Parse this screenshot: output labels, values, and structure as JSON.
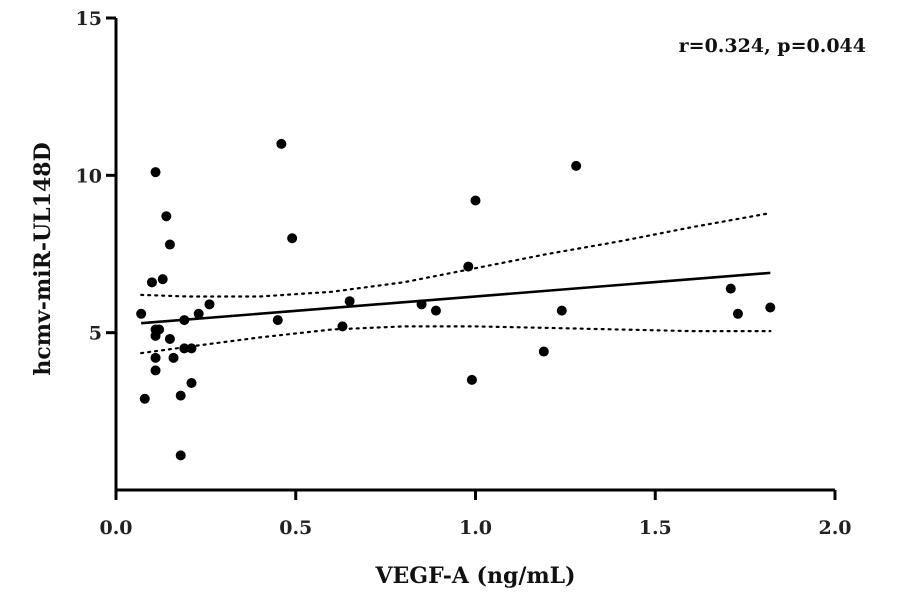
{
  "chart_data": {
    "type": "scatter",
    "title": "",
    "xlabel": "VEGF-A  (ng/mL)",
    "ylabel": "hcmv-miR-UL148D",
    "xlim": [
      0.0,
      2.0
    ],
    "ylim": [
      0,
      15
    ],
    "x_ticks": [
      0.0,
      0.5,
      1.0,
      1.5,
      2.0
    ],
    "x_tick_labels": [
      "0.0",
      "0.5",
      "1.0",
      "1.5",
      "2.0"
    ],
    "y_ticks": [
      5,
      10,
      15
    ],
    "y_tick_labels": [
      "5",
      "10",
      "15"
    ],
    "annotation": "r=0.324, p=0.044",
    "grid": false,
    "legend": "none",
    "colors": {
      "points": "#000000",
      "line": "#000000"
    },
    "points": [
      {
        "x": 0.07,
        "y": 5.6
      },
      {
        "x": 0.08,
        "y": 2.9
      },
      {
        "x": 0.1,
        "y": 6.6
      },
      {
        "x": 0.11,
        "y": 10.1
      },
      {
        "x": 0.11,
        "y": 5.1
      },
      {
        "x": 0.11,
        "y": 4.9
      },
      {
        "x": 0.11,
        "y": 4.2
      },
      {
        "x": 0.11,
        "y": 3.8
      },
      {
        "x": 0.12,
        "y": 5.1
      },
      {
        "x": 0.13,
        "y": 6.7
      },
      {
        "x": 0.14,
        "y": 8.7
      },
      {
        "x": 0.15,
        "y": 7.8
      },
      {
        "x": 0.15,
        "y": 4.8
      },
      {
        "x": 0.16,
        "y": 4.2
      },
      {
        "x": 0.18,
        "y": 3.0
      },
      {
        "x": 0.18,
        "y": 1.1
      },
      {
        "x": 0.19,
        "y": 5.4
      },
      {
        "x": 0.19,
        "y": 4.5
      },
      {
        "x": 0.21,
        "y": 4.5
      },
      {
        "x": 0.21,
        "y": 3.4
      },
      {
        "x": 0.23,
        "y": 5.6
      },
      {
        "x": 0.26,
        "y": 5.9
      },
      {
        "x": 0.45,
        "y": 5.4
      },
      {
        "x": 0.46,
        "y": 11.0
      },
      {
        "x": 0.49,
        "y": 8.0
      },
      {
        "x": 0.63,
        "y": 5.2
      },
      {
        "x": 0.65,
        "y": 6.0
      },
      {
        "x": 0.85,
        "y": 5.9
      },
      {
        "x": 0.89,
        "y": 5.7
      },
      {
        "x": 0.98,
        "y": 7.1
      },
      {
        "x": 0.99,
        "y": 3.5
      },
      {
        "x": 1.0,
        "y": 9.2
      },
      {
        "x": 1.19,
        "y": 4.4
      },
      {
        "x": 1.24,
        "y": 5.7
      },
      {
        "x": 1.28,
        "y": 10.3
      },
      {
        "x": 1.71,
        "y": 6.4
      },
      {
        "x": 1.73,
        "y": 5.6
      },
      {
        "x": 1.82,
        "y": 5.8
      }
    ],
    "regression_line": [
      {
        "x": 0.07,
        "y": 5.3
      },
      {
        "x": 1.82,
        "y": 6.9
      }
    ],
    "confidence_band_upper": [
      {
        "x": 0.07,
        "y": 6.2
      },
      {
        "x": 0.2,
        "y": 6.15
      },
      {
        "x": 0.4,
        "y": 6.15
      },
      {
        "x": 0.6,
        "y": 6.3
      },
      {
        "x": 0.8,
        "y": 6.6
      },
      {
        "x": 1.0,
        "y": 7.05
      },
      {
        "x": 1.2,
        "y": 7.5
      },
      {
        "x": 1.4,
        "y": 7.9
      },
      {
        "x": 1.6,
        "y": 8.35
      },
      {
        "x": 1.82,
        "y": 8.8
      }
    ],
    "confidence_band_lower": [
      {
        "x": 0.07,
        "y": 4.35
      },
      {
        "x": 0.2,
        "y": 4.55
      },
      {
        "x": 0.4,
        "y": 4.85
      },
      {
        "x": 0.6,
        "y": 5.1
      },
      {
        "x": 0.8,
        "y": 5.2
      },
      {
        "x": 1.0,
        "y": 5.2
      },
      {
        "x": 1.2,
        "y": 5.15
      },
      {
        "x": 1.4,
        "y": 5.1
      },
      {
        "x": 1.6,
        "y": 5.05
      },
      {
        "x": 1.82,
        "y": 5.05
      }
    ]
  }
}
